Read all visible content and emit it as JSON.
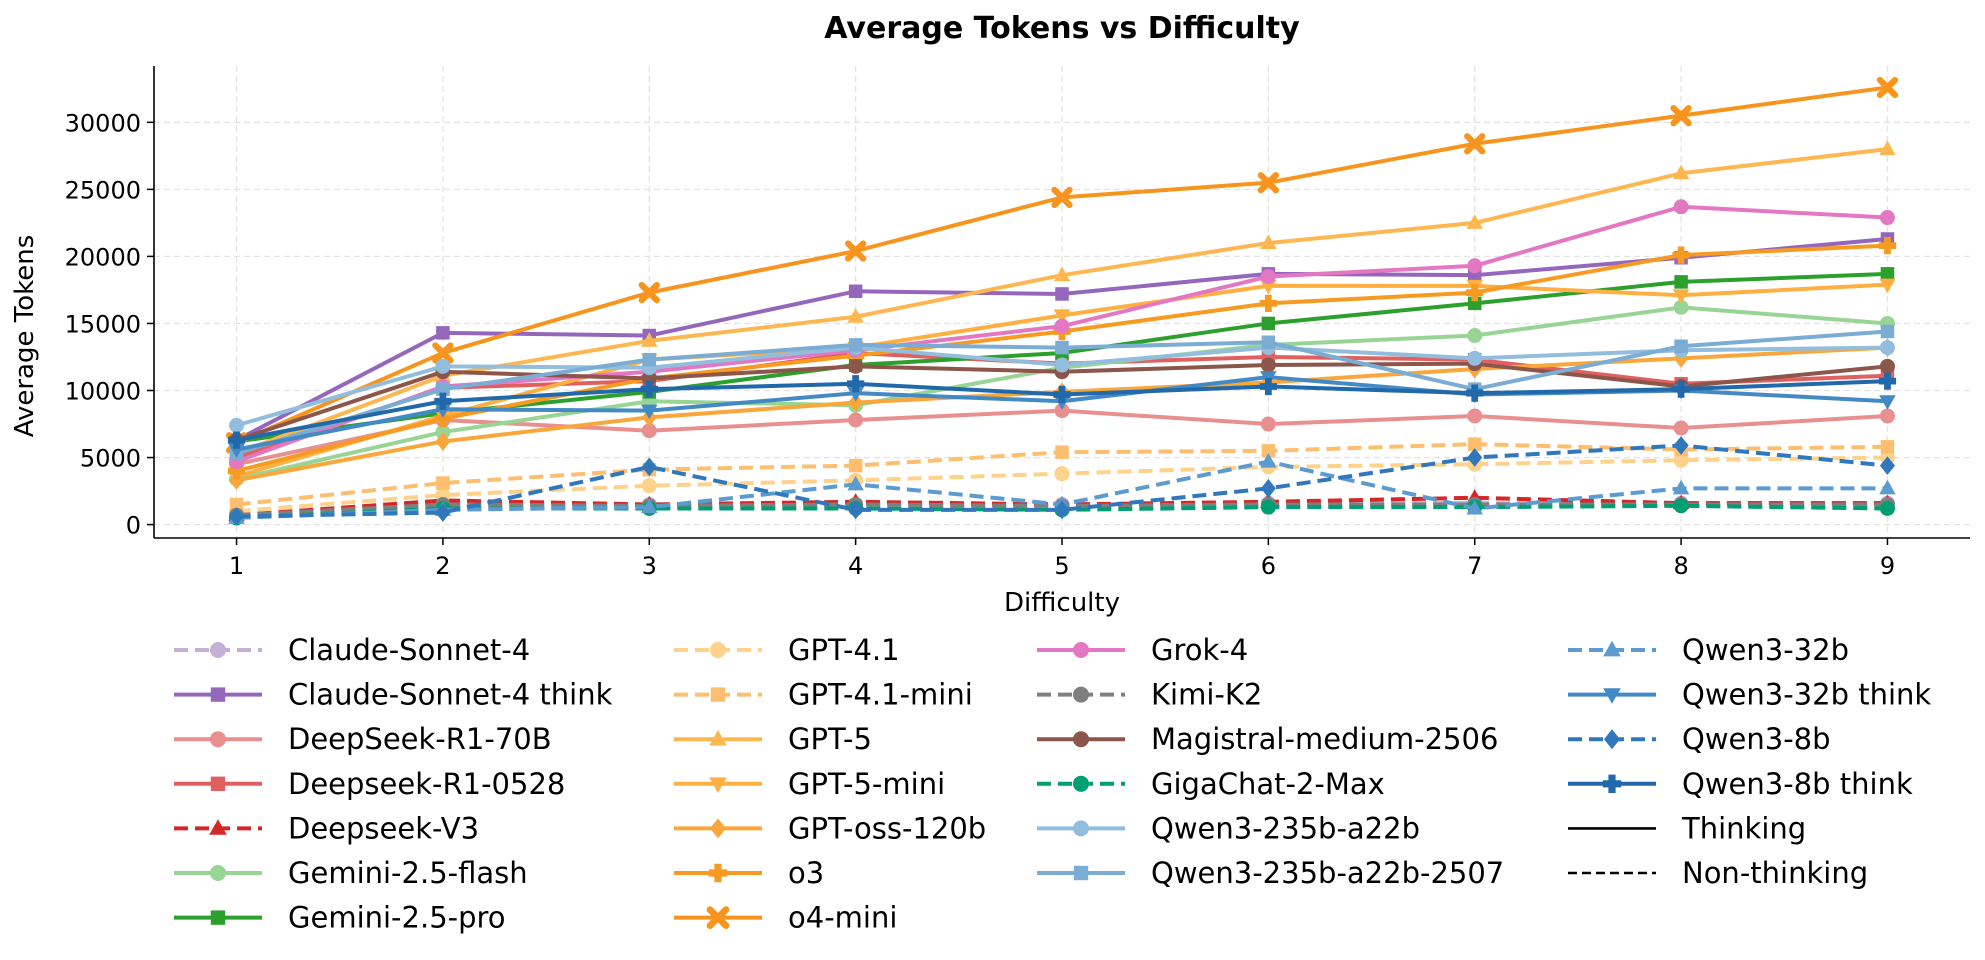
{
  "chart_data": {
    "type": "line",
    "title": "Average Tokens vs Difficulty",
    "xlabel": "Difficulty",
    "ylabel": "Average Tokens",
    "xlim": [
      0.6,
      9.4
    ],
    "ylim": [
      -1000,
      34200
    ],
    "xticks": [
      1,
      2,
      3,
      4,
      5,
      6,
      7,
      8,
      9
    ],
    "yticks": [
      0,
      5000,
      10000,
      15000,
      20000,
      25000,
      30000
    ],
    "x": [
      1,
      2,
      3,
      4,
      5,
      6,
      7,
      8,
      9
    ],
    "grid": true,
    "legend_style": {
      "thinking": "Thinking",
      "non_thinking": "Non-thinking"
    },
    "series": [
      {
        "name": "Claude-Sonnet-4",
        "color": "#c5b0d5",
        "dashed": true,
        "marker": "circle",
        "values": [
          600,
          1600,
          1500,
          1500,
          1500,
          1600,
          1600,
          1600,
          1600
        ]
      },
      {
        "name": "Claude-Sonnet-4 think",
        "color": "#9467bd",
        "dashed": false,
        "marker": "square",
        "values": [
          6300,
          14300,
          14100,
          17400,
          17200,
          18700,
          18600,
          19900,
          21300
        ]
      },
      {
        "name": "DeepSeek-R1-70B",
        "color": "#e88f8f",
        "dashed": false,
        "marker": "circle",
        "values": [
          4500,
          7800,
          7000,
          7800,
          8500,
          7500,
          8100,
          7200,
          8100
        ]
      },
      {
        "name": "Deepseek-R1-0528",
        "color": "#e06060",
        "dashed": false,
        "marker": "square",
        "values": [
          5000,
          10200,
          10700,
          12800,
          12000,
          12500,
          12300,
          10500,
          11100
        ]
      },
      {
        "name": "Deepseek-V3",
        "color": "#d62728",
        "dashed": true,
        "marker": "triangle-up",
        "values": [
          700,
          1800,
          1500,
          1700,
          1500,
          1700,
          2000,
          1600,
          1600
        ]
      },
      {
        "name": "Gemini-2.5-flash",
        "color": "#98d595",
        "dashed": false,
        "marker": "circle",
        "values": [
          3400,
          6900,
          9200,
          8900,
          11700,
          13400,
          14100,
          16200,
          15000
        ]
      },
      {
        "name": "Gemini-2.5-pro",
        "color": "#2ca02c",
        "dashed": false,
        "marker": "square",
        "values": [
          6200,
          8300,
          9900,
          11900,
          12800,
          15000,
          16500,
          18100,
          18700
        ]
      },
      {
        "name": "GPT-4.1",
        "color": "#fdd28a",
        "dashed": true,
        "marker": "circle",
        "values": [
          1000,
          2200,
          2900,
          3300,
          3800,
          4300,
          4500,
          4800,
          5000
        ]
      },
      {
        "name": "GPT-4.1-mini",
        "color": "#fdbe6f",
        "dashed": true,
        "marker": "square",
        "values": [
          1500,
          3100,
          4100,
          4400,
          5400,
          5500,
          6000,
          5600,
          5800
        ]
      },
      {
        "name": "GPT-5",
        "color": "#fdb751",
        "dashed": false,
        "marker": "triangle-up",
        "values": [
          5300,
          11100,
          13700,
          15500,
          18600,
          21000,
          22500,
          26200,
          28000
        ]
      },
      {
        "name": "GPT-5-mini",
        "color": "#fdb041",
        "dashed": false,
        "marker": "triangle-down",
        "values": [
          3600,
          8100,
          12300,
          13200,
          15600,
          17800,
          17800,
          17100,
          17900
        ]
      },
      {
        "name": "GPT-oss-120b",
        "color": "#f9a63b",
        "dashed": false,
        "marker": "diamond",
        "values": [
          3300,
          6200,
          8000,
          9100,
          9900,
          10600,
          11600,
          12400,
          13200
        ]
      },
      {
        "name": "o3",
        "color": "#f79a22",
        "dashed": false,
        "marker": "plus",
        "values": [
          4000,
          7900,
          10900,
          12600,
          14400,
          16500,
          17300,
          20100,
          20800
        ]
      },
      {
        "name": "o4-mini",
        "color": "#f7941d",
        "dashed": false,
        "marker": "x",
        "values": [
          6100,
          12800,
          17300,
          20400,
          24400,
          25500,
          28400,
          30500,
          32600
        ]
      },
      {
        "name": "Grok-4",
        "color": "#e377c2",
        "dashed": false,
        "marker": "circle",
        "values": [
          4700,
          10300,
          11400,
          13000,
          14800,
          18500,
          19300,
          23700,
          22900
        ]
      },
      {
        "name": "Kimi-K2",
        "color": "#7f7f7f",
        "dashed": true,
        "marker": "circle",
        "values": [
          700,
          1500,
          1400,
          1500,
          1400,
          1500,
          1500,
          1500,
          1500
        ]
      },
      {
        "name": "Magistral-medium-2506",
        "color": "#8c564b",
        "dashed": false,
        "marker": "circle",
        "values": [
          6300,
          11400,
          10900,
          11800,
          11400,
          11900,
          12000,
          10300,
          11800
        ]
      },
      {
        "name": "GigaChat-2-Max",
        "color": "#009e73",
        "dashed": true,
        "marker": "circle",
        "values": [
          500,
          1200,
          1200,
          1200,
          1100,
          1300,
          1300,
          1400,
          1200
        ]
      },
      {
        "name": "Qwen3-235b-a22b",
        "color": "#92bddc",
        "dashed": false,
        "marker": "circle",
        "values": [
          7400,
          11800,
          11700,
          13200,
          11900,
          13200,
          12400,
          13000,
          13200
        ]
      },
      {
        "name": "Qwen3-235b-a22b-2507",
        "color": "#7bacd3",
        "dashed": false,
        "marker": "square",
        "values": [
          5300,
          10100,
          12300,
          13400,
          13200,
          13600,
          10100,
          13300,
          14400
        ]
      },
      {
        "name": "Qwen3-32b",
        "color": "#5b9bd0",
        "dashed": true,
        "marker": "triangle-up",
        "values": [
          500,
          1100,
          1300,
          3000,
          1500,
          4700,
          1200,
          2700,
          2700
        ]
      },
      {
        "name": "Qwen3-32b think",
        "color": "#4389c4",
        "dashed": false,
        "marker": "triangle-down",
        "values": [
          5600,
          8600,
          8500,
          9800,
          9200,
          11000,
          9700,
          10000,
          9200
        ]
      },
      {
        "name": "Qwen3-8b",
        "color": "#3078bb",
        "dashed": true,
        "marker": "diamond",
        "values": [
          600,
          900,
          4300,
          1100,
          1100,
          2700,
          5000,
          5900,
          4400
        ]
      },
      {
        "name": "Qwen3-8b think",
        "color": "#2169ab",
        "dashed": false,
        "marker": "plus",
        "values": [
          6300,
          9200,
          10100,
          10500,
          9700,
          10300,
          9800,
          10100,
          10700
        ]
      }
    ]
  }
}
